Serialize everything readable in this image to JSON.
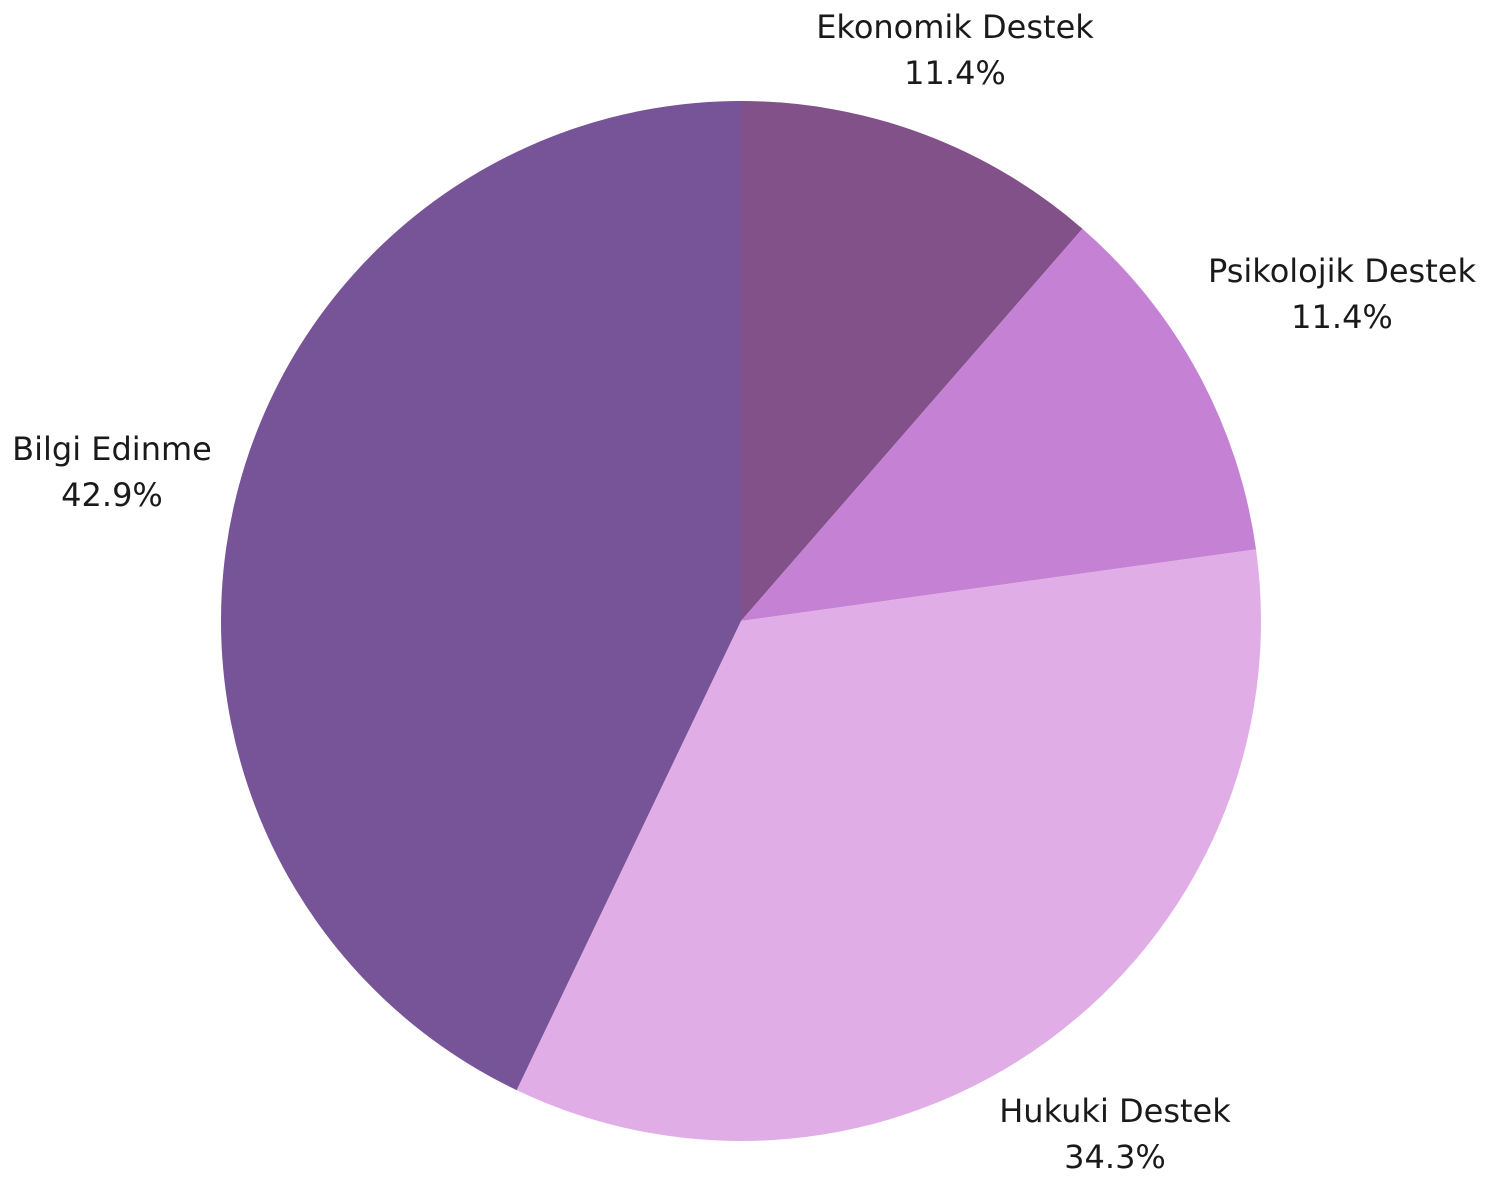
{
  "chart_data": {
    "type": "pie",
    "title": "",
    "start_angle_deg": 0,
    "direction": "clockwise",
    "slices": [
      {
        "label": "Ekonomik Destek",
        "value": 11.4,
        "pct_text": "11.4%",
        "color": "#82518a"
      },
      {
        "label": "Psikolojik Destek",
        "value": 11.4,
        "pct_text": "11.4%",
        "color": "#c582d5"
      },
      {
        "label": "Hukuki Destek",
        "value": 34.3,
        "pct_text": "34.3%",
        "color": "#e1ade6"
      },
      {
        "label": "Bilgi Edinme",
        "value": 42.9,
        "pct_text": "42.9%",
        "color": "#775398"
      }
    ]
  }
}
